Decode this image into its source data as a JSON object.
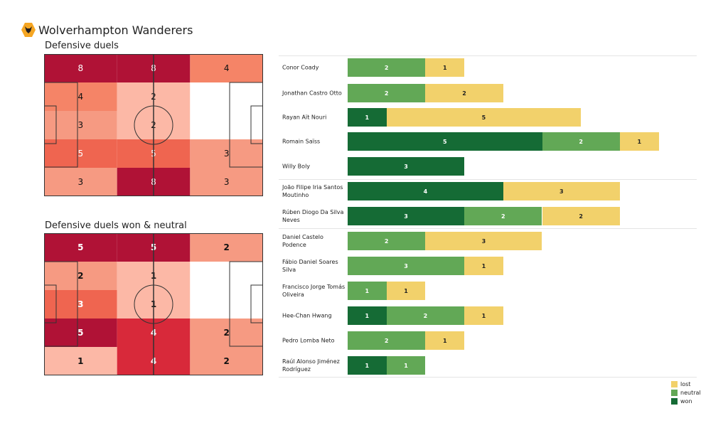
{
  "header": {
    "team": "Wolverhampton Wanderers",
    "logo": "wolves-crest"
  },
  "chart_data": [
    {
      "type": "heatmap",
      "title": "Defensive duels",
      "rows": 5,
      "cols": 3,
      "values": [
        [
          8,
          8,
          4
        ],
        [
          4,
          2,
          null
        ],
        [
          3,
          2,
          null
        ],
        [
          5,
          5,
          3
        ],
        [
          3,
          8,
          3
        ]
      ]
    },
    {
      "type": "heatmap",
      "title": "Defensive duels won & neutral",
      "rows": 5,
      "cols": 3,
      "values": [
        [
          5,
          5,
          2
        ],
        [
          2,
          1,
          null
        ],
        [
          3,
          1,
          null
        ],
        [
          5,
          4,
          2
        ],
        [
          1,
          4,
          2
        ]
      ]
    },
    {
      "type": "bar",
      "stacked": true,
      "orientation": "horizontal",
      "series_names": [
        "won",
        "neutral",
        "lost"
      ],
      "colors": {
        "won": "#156b35",
        "neutral": "#62a856",
        "lost": "#f2d16b"
      },
      "legend_position": "bottom-right",
      "players": [
        {
          "name": "Conor  Coady",
          "won": 0,
          "neutral": 2,
          "lost": 1
        },
        {
          "name": "Jonathan Castro Otto",
          "won": 0,
          "neutral": 2,
          "lost": 2
        },
        {
          "name": "Rayan Aït Nouri",
          "won": 1,
          "neutral": 0,
          "lost": 5
        },
        {
          "name": "Romain Saïss",
          "won": 5,
          "neutral": 2,
          "lost": 1
        },
        {
          "name": "Willy Boly",
          "won": 3,
          "neutral": 0,
          "lost": 0
        },
        {
          "name": "João Filipe Iria Santos Moutinho",
          "won": 4,
          "neutral": 0,
          "lost": 3
        },
        {
          "name": "Rúben Diogo Da Silva Neves",
          "won": 3,
          "neutral": 2,
          "lost": 2
        },
        {
          "name": "Daniel Castelo Podence",
          "won": 0,
          "neutral": 2,
          "lost": 3
        },
        {
          "name": "Fábio Daniel Soares Silva",
          "won": 0,
          "neutral": 3,
          "lost": 1
        },
        {
          "name": "Francisco Jorge Tomás Oliveira",
          "won": 0,
          "neutral": 1,
          "lost": 1
        },
        {
          "name": "Hee-Chan Hwang",
          "won": 1,
          "neutral": 2,
          "lost": 1
        },
        {
          "name": "Pedro Lomba Neto",
          "won": 0,
          "neutral": 2,
          "lost": 1
        },
        {
          "name": "Raúl Alonso Jiménez Rodríguez",
          "won": 1,
          "neutral": 1,
          "lost": 0
        }
      ]
    }
  ],
  "legend": {
    "lost": "lost",
    "neutral": "neutral",
    "won": "won"
  }
}
